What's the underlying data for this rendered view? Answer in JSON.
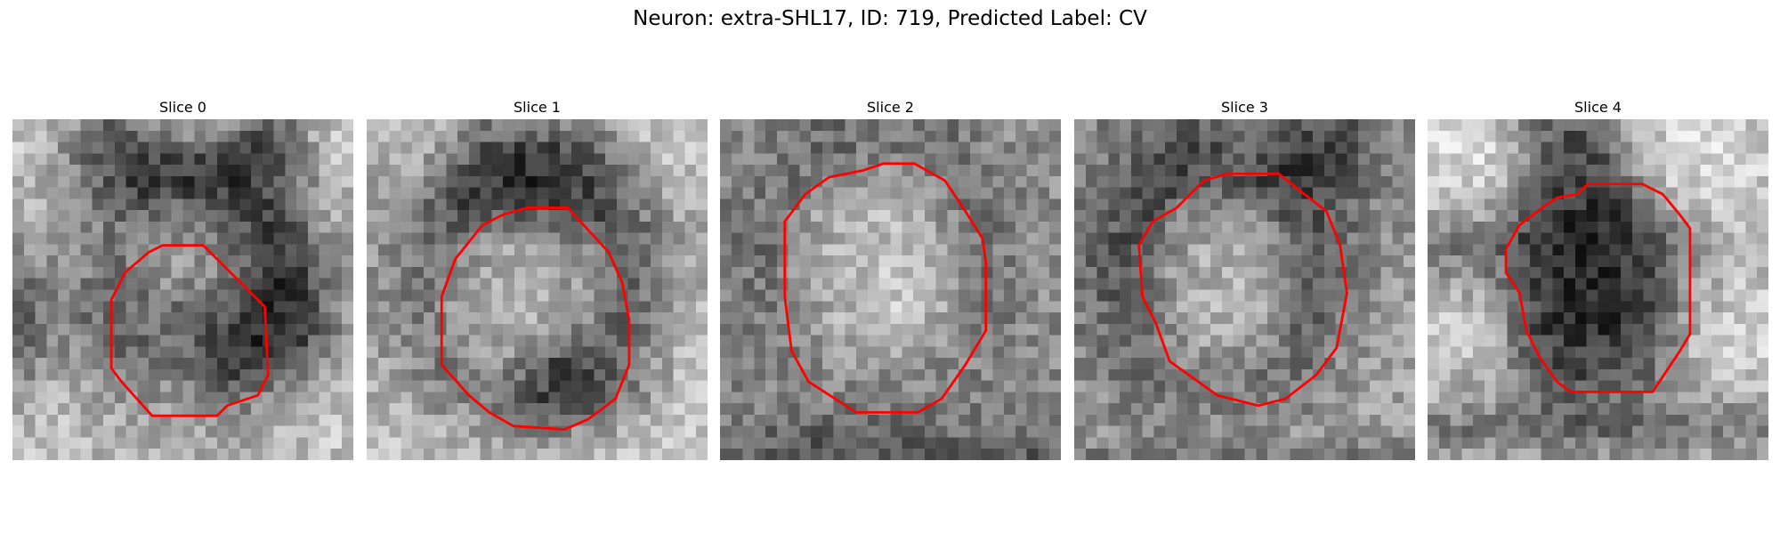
{
  "figure": {
    "title": "Neuron: extra-SHL17, ID: 719, Predicted Label: CV",
    "contour_color": "#ff0000"
  },
  "panels": [
    {
      "title": "Slice 0",
      "mean_tone": [
        [
          200,
          200,
          170,
          130,
          110,
          120,
          150,
          170,
          170,
          150,
          120,
          110,
          160,
          190,
          200
        ],
        [
          190,
          190,
          150,
          110,
          80,
          60,
          80,
          100,
          90,
          70,
          60,
          90,
          140,
          190,
          190
        ],
        [
          180,
          180,
          160,
          120,
          90,
          60,
          40,
          40,
          40,
          40,
          60,
          90,
          130,
          180,
          180
        ],
        [
          170,
          170,
          160,
          140,
          110,
          100,
          110,
          120,
          120,
          90,
          60,
          80,
          130,
          170,
          170
        ],
        [
          150,
          150,
          150,
          140,
          120,
          130,
          150,
          150,
          140,
          110,
          70,
          60,
          100,
          150,
          160
        ],
        [
          110,
          130,
          150,
          130,
          110,
          130,
          150,
          150,
          140,
          120,
          80,
          50,
          70,
          130,
          150
        ],
        [
          80,
          110,
          140,
          120,
          100,
          110,
          120,
          110,
          100,
          90,
          60,
          40,
          60,
          120,
          150
        ],
        [
          90,
          120,
          140,
          120,
          100,
          100,
          110,
          100,
          80,
          50,
          40,
          40,
          70,
          130,
          160
        ],
        [
          120,
          140,
          160,
          140,
          120,
          120,
          120,
          110,
          90,
          60,
          60,
          80,
          120,
          160,
          180
        ],
        [
          160,
          170,
          180,
          170,
          160,
          150,
          150,
          150,
          130,
          120,
          130,
          150,
          170,
          190,
          190
        ],
        [
          180,
          190,
          190,
          180,
          180,
          170,
          170,
          170,
          160,
          160,
          170,
          180,
          190,
          200,
          200
        ],
        [
          190,
          190,
          190,
          190,
          180,
          180,
          180,
          170,
          170,
          170,
          180,
          190,
          190,
          190,
          190
        ]
      ],
      "contour": [
        [
          0.49,
          0.37
        ],
        [
          0.56,
          0.37
        ],
        [
          0.74,
          0.55
        ],
        [
          0.75,
          0.75
        ],
        [
          0.72,
          0.81
        ],
        [
          0.63,
          0.84
        ],
        [
          0.6,
          0.87
        ],
        [
          0.41,
          0.87
        ],
        [
          0.32,
          0.77
        ],
        [
          0.29,
          0.73
        ],
        [
          0.29,
          0.53
        ],
        [
          0.33,
          0.45
        ],
        [
          0.4,
          0.39
        ],
        [
          0.44,
          0.37
        ]
      ]
    },
    {
      "title": "Slice 1",
      "mean_tone": [
        [
          190,
          200,
          200,
          180,
          150,
          130,
          140,
          150,
          150,
          140,
          170,
          190,
          200,
          200,
          200
        ],
        [
          180,
          190,
          180,
          150,
          110,
          80,
          60,
          60,
          70,
          90,
          130,
          170,
          190,
          200,
          190
        ],
        [
          170,
          170,
          150,
          110,
          80,
          60,
          40,
          40,
          50,
          70,
          90,
          130,
          170,
          180,
          180
        ],
        [
          160,
          150,
          120,
          90,
          70,
          80,
          90,
          90,
          80,
          70,
          80,
          110,
          150,
          170,
          180
        ],
        [
          150,
          140,
          110,
          110,
          130,
          150,
          160,
          150,
          140,
          130,
          90,
          90,
          130,
          160,
          170
        ],
        [
          150,
          140,
          120,
          130,
          150,
          170,
          180,
          170,
          160,
          150,
          110,
          90,
          130,
          160,
          170
        ],
        [
          150,
          140,
          120,
          130,
          160,
          180,
          190,
          180,
          170,
          150,
          110,
          100,
          140,
          170,
          180
        ],
        [
          160,
          150,
          130,
          120,
          150,
          170,
          170,
          150,
          130,
          120,
          110,
          110,
          150,
          180,
          190
        ],
        [
          170,
          160,
          140,
          120,
          130,
          150,
          130,
          90,
          60,
          70,
          90,
          120,
          160,
          180,
          190
        ],
        [
          180,
          180,
          160,
          140,
          130,
          120,
          100,
          70,
          60,
          80,
          110,
          140,
          170,
          190,
          200
        ],
        [
          190,
          190,
          180,
          170,
          160,
          150,
          140,
          130,
          130,
          140,
          160,
          180,
          190,
          200,
          200
        ],
        [
          190,
          190,
          190,
          190,
          180,
          180,
          180,
          180,
          180,
          180,
          190,
          190,
          190,
          190,
          190
        ]
      ],
      "contour": [
        [
          0.47,
          0.26
        ],
        [
          0.59,
          0.26
        ],
        [
          0.71,
          0.39
        ],
        [
          0.75,
          0.48
        ],
        [
          0.77,
          0.59
        ],
        [
          0.77,
          0.72
        ],
        [
          0.73,
          0.82
        ],
        [
          0.65,
          0.88
        ],
        [
          0.58,
          0.91
        ],
        [
          0.43,
          0.9
        ],
        [
          0.36,
          0.86
        ],
        [
          0.3,
          0.81
        ],
        [
          0.22,
          0.72
        ],
        [
          0.22,
          0.52
        ],
        [
          0.26,
          0.41
        ],
        [
          0.34,
          0.31
        ],
        [
          0.4,
          0.28
        ]
      ]
    },
    {
      "title": "Slice 2",
      "mean_tone": [
        [
          120,
          140,
          130,
          120,
          110,
          110,
          120,
          130,
          120,
          110,
          120,
          140,
          150,
          140,
          130
        ],
        [
          130,
          140,
          130,
          120,
          110,
          110,
          120,
          120,
          110,
          110,
          120,
          130,
          140,
          140,
          130
        ],
        [
          130,
          130,
          120,
          110,
          130,
          150,
          160,
          160,
          150,
          130,
          110,
          120,
          130,
          140,
          140
        ],
        [
          120,
          120,
          110,
          130,
          160,
          180,
          190,
          180,
          170,
          150,
          120,
          110,
          130,
          140,
          140
        ],
        [
          120,
          120,
          110,
          140,
          170,
          180,
          190,
          190,
          180,
          160,
          130,
          120,
          130,
          140,
          140
        ],
        [
          120,
          120,
          110,
          140,
          170,
          190,
          190,
          200,
          180,
          170,
          140,
          120,
          130,
          140,
          140
        ],
        [
          130,
          130,
          120,
          140,
          160,
          180,
          190,
          200,
          190,
          170,
          140,
          120,
          130,
          140,
          140
        ],
        [
          130,
          130,
          120,
          130,
          150,
          170,
          180,
          180,
          170,
          150,
          130,
          120,
          130,
          140,
          140
        ],
        [
          130,
          130,
          130,
          130,
          140,
          150,
          150,
          150,
          150,
          140,
          130,
          130,
          130,
          140,
          140
        ],
        [
          130,
          130,
          130,
          130,
          130,
          130,
          130,
          130,
          130,
          130,
          130,
          130,
          130,
          130,
          130
        ],
        [
          120,
          120,
          110,
          100,
          100,
          100,
          110,
          110,
          110,
          110,
          110,
          110,
          110,
          110,
          110
        ],
        [
          90,
          90,
          80,
          70,
          80,
          80,
          80,
          80,
          80,
          90,
          90,
          90,
          90,
          90,
          90
        ]
      ],
      "contour": [
        [
          0.32,
          0.17
        ],
        [
          0.42,
          0.15
        ],
        [
          0.48,
          0.13
        ],
        [
          0.57,
          0.13
        ],
        [
          0.66,
          0.18
        ],
        [
          0.72,
          0.27
        ],
        [
          0.77,
          0.35
        ],
        [
          0.78,
          0.42
        ],
        [
          0.78,
          0.62
        ],
        [
          0.72,
          0.72
        ],
        [
          0.65,
          0.82
        ],
        [
          0.58,
          0.86
        ],
        [
          0.4,
          0.86
        ],
        [
          0.26,
          0.77
        ],
        [
          0.21,
          0.68
        ],
        [
          0.19,
          0.52
        ],
        [
          0.19,
          0.3
        ],
        [
          0.25,
          0.22
        ]
      ]
    },
    {
      "title": "Slice 3",
      "mean_tone": [
        [
          140,
          130,
          120,
          110,
          100,
          100,
          110,
          120,
          110,
          100,
          90,
          90,
          110,
          130,
          140
        ],
        [
          140,
          130,
          110,
          100,
          80,
          70,
          80,
          90,
          90,
          70,
          60,
          70,
          100,
          130,
          140
        ],
        [
          130,
          120,
          100,
          80,
          70,
          80,
          90,
          80,
          60,
          50,
          60,
          90,
          110,
          130,
          140
        ],
        [
          130,
          110,
          90,
          80,
          110,
          140,
          150,
          140,
          110,
          80,
          80,
          110,
          130,
          140,
          150
        ],
        [
          120,
          100,
          80,
          90,
          140,
          160,
          170,
          160,
          150,
          110,
          80,
          100,
          130,
          150,
          150
        ],
        [
          120,
          100,
          80,
          100,
          150,
          170,
          180,
          180,
          160,
          120,
          90,
          110,
          140,
          150,
          160
        ],
        [
          130,
          110,
          90,
          100,
          150,
          170,
          180,
          180,
          160,
          120,
          100,
          120,
          140,
          160,
          160
        ],
        [
          130,
          120,
          100,
          100,
          140,
          160,
          170,
          160,
          140,
          110,
          110,
          130,
          150,
          160,
          160
        ],
        [
          140,
          130,
          110,
          110,
          120,
          140,
          140,
          130,
          110,
          110,
          120,
          140,
          150,
          160,
          170
        ],
        [
          150,
          140,
          130,
          130,
          120,
          120,
          120,
          120,
          120,
          130,
          140,
          150,
          160,
          160,
          170
        ],
        [
          150,
          150,
          140,
          140,
          140,
          140,
          140,
          140,
          140,
          150,
          150,
          160,
          160,
          160,
          160
        ],
        [
          120,
          120,
          110,
          110,
          110,
          110,
          110,
          110,
          110,
          110,
          110,
          110,
          110,
          110,
          110
        ]
      ],
      "contour": [
        [
          0.3,
          0.26
        ],
        [
          0.38,
          0.18
        ],
        [
          0.45,
          0.16
        ],
        [
          0.6,
          0.16
        ],
        [
          0.65,
          0.2
        ],
        [
          0.74,
          0.27
        ],
        [
          0.78,
          0.37
        ],
        [
          0.8,
          0.51
        ],
        [
          0.77,
          0.67
        ],
        [
          0.71,
          0.75
        ],
        [
          0.62,
          0.82
        ],
        [
          0.54,
          0.84
        ],
        [
          0.42,
          0.81
        ],
        [
          0.28,
          0.71
        ],
        [
          0.24,
          0.6
        ],
        [
          0.2,
          0.52
        ],
        [
          0.19,
          0.37
        ],
        [
          0.23,
          0.3
        ]
      ]
    },
    {
      "title": "Slice 4",
      "mean_tone": [
        [
          200,
          210,
          210,
          190,
          140,
          100,
          90,
          100,
          150,
          190,
          210,
          220,
          210,
          200,
          200
        ],
        [
          210,
          220,
          220,
          200,
          140,
          90,
          70,
          80,
          140,
          190,
          210,
          220,
          220,
          210,
          200
        ],
        [
          200,
          210,
          210,
          180,
          120,
          80,
          60,
          70,
          110,
          160,
          200,
          210,
          210,
          200,
          200
        ],
        [
          180,
          180,
          170,
          150,
          100,
          60,
          50,
          50,
          60,
          90,
          150,
          190,
          200,
          190,
          190
        ],
        [
          120,
          120,
          110,
          100,
          70,
          50,
          40,
          40,
          50,
          70,
          110,
          150,
          170,
          180,
          180
        ],
        [
          150,
          150,
          140,
          120,
          80,
          50,
          40,
          40,
          50,
          70,
          110,
          160,
          180,
          190,
          190
        ],
        [
          190,
          190,
          180,
          150,
          90,
          50,
          40,
          40,
          50,
          70,
          120,
          170,
          190,
          200,
          200
        ],
        [
          200,
          200,
          190,
          160,
          100,
          60,
          50,
          50,
          60,
          80,
          130,
          180,
          200,
          210,
          210
        ],
        [
          190,
          190,
          180,
          160,
          120,
          80,
          70,
          70,
          80,
          100,
          140,
          180,
          200,
          200,
          200
        ],
        [
          170,
          170,
          160,
          150,
          130,
          110,
          100,
          100,
          110,
          120,
          140,
          160,
          170,
          170,
          170
        ],
        [
          120,
          120,
          120,
          110,
          110,
          100,
          100,
          100,
          100,
          110,
          110,
          120,
          120,
          120,
          120
        ],
        [
          170,
          170,
          170,
          160,
          160,
          160,
          160,
          160,
          160,
          160,
          160,
          170,
          170,
          170,
          170
        ]
      ],
      "contour": [
        [
          0.35,
          0.25
        ],
        [
          0.38,
          0.23
        ],
        [
          0.44,
          0.22
        ],
        [
          0.47,
          0.19
        ],
        [
          0.63,
          0.19
        ],
        [
          0.69,
          0.22
        ],
        [
          0.74,
          0.28
        ],
        [
          0.77,
          0.32
        ],
        [
          0.77,
          0.63
        ],
        [
          0.74,
          0.68
        ],
        [
          0.7,
          0.74
        ],
        [
          0.66,
          0.8
        ],
        [
          0.57,
          0.8
        ],
        [
          0.42,
          0.8
        ],
        [
          0.38,
          0.77
        ],
        [
          0.33,
          0.7
        ],
        [
          0.29,
          0.62
        ],
        [
          0.27,
          0.51
        ],
        [
          0.23,
          0.45
        ],
        [
          0.23,
          0.38
        ],
        [
          0.27,
          0.31
        ]
      ]
    }
  ]
}
